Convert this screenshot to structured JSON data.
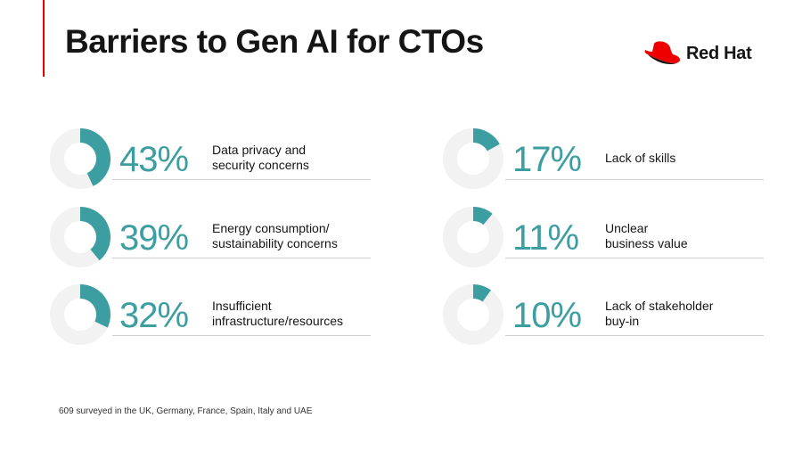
{
  "title": "Barriers to Gen AI for CTOs",
  "logo": {
    "text": "Red Hat",
    "icon": "red-hat-fedora-icon"
  },
  "colors": {
    "accent": "#3d9ea2",
    "ring": "#f2f2f2",
    "brand_red": "#ee0000"
  },
  "chart_data": {
    "type": "donut-stat-list",
    "unit": "%",
    "items": [
      {
        "value": 43,
        "label_text": "43%",
        "label": [
          "Data privacy and",
          "security concerns"
        ]
      },
      {
        "value": 39,
        "label_text": "39%",
        "label": [
          "Energy consumption/",
          "sustainability concerns"
        ]
      },
      {
        "value": 32,
        "label_text": "32%",
        "label": [
          "Insufficient",
          "infrastructure/resources"
        ]
      },
      {
        "value": 17,
        "label_text": "17%",
        "label": [
          "Lack of skills"
        ]
      },
      {
        "value": 11,
        "label_text": "11%",
        "label": [
          "Unclear",
          "business value"
        ]
      },
      {
        "value": 10,
        "label_text": "10%",
        "label": [
          "Lack of stakeholder",
          "buy-in"
        ]
      }
    ]
  },
  "footnote": "609 surveyed in the UK, Germany, France, Spain, Italy and UAE"
}
